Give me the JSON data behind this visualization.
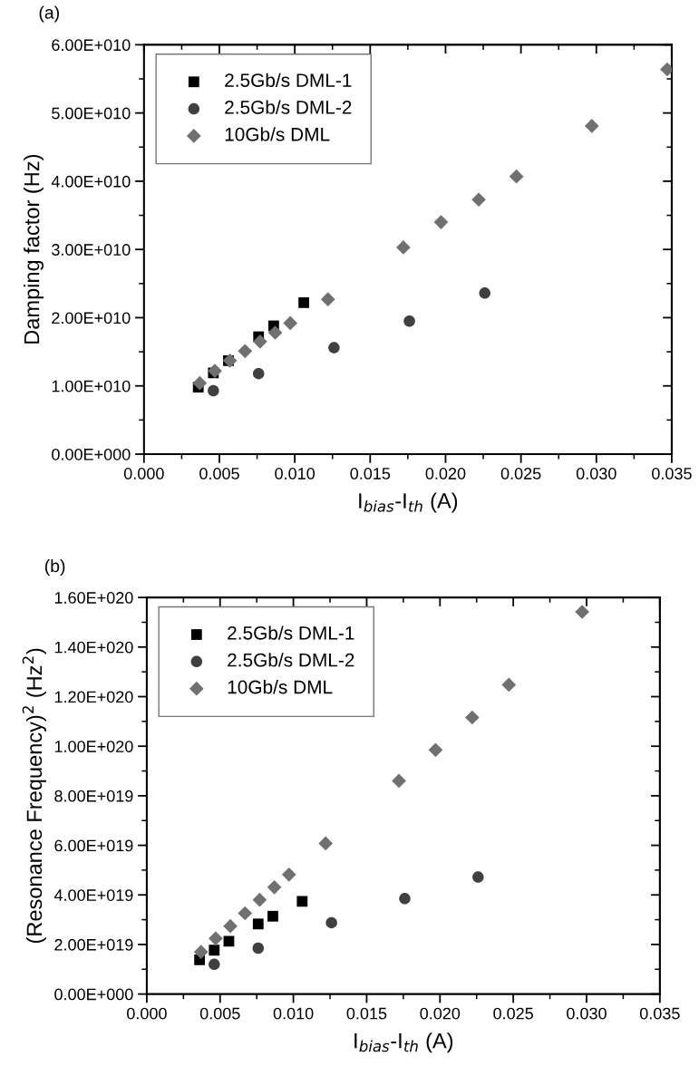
{
  "chart_data": [
    {
      "type": "scatter",
      "title": "(a)",
      "xlabel": "I$_{bias}$-I$_{th}$ (A)",
      "ylabel": "Damping factor (Hz)",
      "xlim": [
        0,
        0.035
      ],
      "xticks": [
        {
          "value": 0,
          "label": "0.000"
        },
        {
          "value": 0.005,
          "label": "0.005"
        },
        {
          "value": 0.01,
          "label": "0.010"
        },
        {
          "value": 0.015,
          "label": "0.015"
        },
        {
          "value": 0.02,
          "label": "0.020"
        },
        {
          "value": 0.025,
          "label": "0.025"
        },
        {
          "value": 0.03,
          "label": "0.030"
        },
        {
          "value": 0.035,
          "label": "0.035"
        }
      ],
      "ylim": [
        0,
        60000000000.0
      ],
      "yticks": [
        {
          "value": 0,
          "label": "0.00E+000"
        },
        {
          "value": 10000000000.0,
          "label": "1.00E+010"
        },
        {
          "value": 20000000000.0,
          "label": "2.00E+010"
        },
        {
          "value": 30000000000.0,
          "label": "3.00E+010"
        },
        {
          "value": 40000000000.0,
          "label": "4.00E+010"
        },
        {
          "value": 50000000000.0,
          "label": "5.00E+010"
        },
        {
          "value": 60000000000.0,
          "label": "6.00E+010"
        }
      ],
      "legend": "top left",
      "grid": false,
      "series": [
        {
          "name": "2.5Gb/s DML-1",
          "color": "#000000",
          "marker": "square",
          "x": [
            0.0036,
            0.0046,
            0.0056,
            0.0076,
            0.0086,
            0.0106
          ],
          "values": [
            9800000000.0,
            11900000000.0,
            13700000000.0,
            17200000000.0,
            18800000000.0,
            22200000000.0
          ]
        },
        {
          "name": "2.5Gb/s DML-2",
          "color": "#404040",
          "marker": "circle",
          "x": [
            0.0046,
            0.0076,
            0.0126,
            0.0176,
            0.0226
          ],
          "values": [
            9300000000.0,
            11800000000.0,
            15600000000.0,
            19500000000.0,
            23600000000.0
          ]
        },
        {
          "name": "10Gb/s DML",
          "color": "#707070",
          "marker": "diamond",
          "x": [
            0.0037,
            0.0047,
            0.0057,
            0.0067,
            0.0077,
            0.0087,
            0.0097,
            0.0122,
            0.0172,
            0.0197,
            0.0222,
            0.0247,
            0.0297,
            0.0347
          ],
          "values": [
            10400000000.0,
            12200000000.0,
            13700000000.0,
            15100000000.0,
            16500000000.0,
            17800000000.0,
            19200000000.0,
            22700000000.0,
            30300000000.0,
            34000000000.0,
            37300000000.0,
            40700000000.0,
            48100000000.0,
            56400000000.0
          ]
        }
      ]
    },
    {
      "type": "scatter",
      "title": "(b)",
      "xlabel": "I$_{bias}$-I$_{th}$ (A)",
      "ylabel": "(Resonance Frequency)$^{2}$ (Hz$^{2}$)",
      "xlim": [
        0,
        0.035
      ],
      "xticks": [
        {
          "value": 0,
          "label": "0.000"
        },
        {
          "value": 0.005,
          "label": "0.005"
        },
        {
          "value": 0.01,
          "label": "0.010"
        },
        {
          "value": 0.015,
          "label": "0.015"
        },
        {
          "value": 0.02,
          "label": "0.020"
        },
        {
          "value": 0.025,
          "label": "0.025"
        },
        {
          "value": 0.03,
          "label": "0.030"
        },
        {
          "value": 0.035,
          "label": "0.035"
        }
      ],
      "ylim": [
        0,
        1.6e+20
      ],
      "yticks": [
        {
          "value": 0,
          "label": "0.00E+000"
        },
        {
          "value": 2e+19,
          "label": "2.00E+019"
        },
        {
          "value": 4e+19,
          "label": "4.00E+019"
        },
        {
          "value": 6e+19,
          "label": "6.00E+019"
        },
        {
          "value": 8e+19,
          "label": "8.00E+019"
        },
        {
          "value": 1e+20,
          "label": "1.00E+020"
        },
        {
          "value": 1.2e+20,
          "label": "1.20E+020"
        },
        {
          "value": 1.4e+20,
          "label": "1.40E+020"
        },
        {
          "value": 1.6e+20,
          "label": "1.60E+020"
        }
      ],
      "legend": "top left",
      "grid": false,
      "series": [
        {
          "name": "2.5Gb/s DML-1",
          "color": "#000000",
          "marker": "square",
          "x": [
            0.0036,
            0.0046,
            0.0056,
            0.0076,
            0.0086,
            0.0106
          ],
          "values": [
            1.38e+19,
            1.77e+19,
            2.13e+19,
            2.83e+19,
            3.14e+19,
            3.74e+19
          ]
        },
        {
          "name": "2.5Gb/s DML-2",
          "color": "#404040",
          "marker": "circle",
          "x": [
            0.0046,
            0.0076,
            0.0126,
            0.0176,
            0.0226
          ],
          "values": [
            1.2e+19,
            1.85e+19,
            2.88e+19,
            3.85e+19,
            4.72e+19
          ]
        },
        {
          "name": "10Gb/s DML",
          "color": "#707070",
          "marker": "diamond",
          "x": [
            0.0037,
            0.0047,
            0.0057,
            0.0067,
            0.0077,
            0.0087,
            0.0097,
            0.0122,
            0.0172,
            0.0197,
            0.0222,
            0.0247,
            0.0297
          ],
          "values": [
            1.7e+19,
            2.24e+19,
            2.74e+19,
            3.26e+19,
            3.8e+19,
            4.31e+19,
            4.82e+19,
            6.08e+19,
            8.6e+19,
            9.85e+19,
            1.116e+20,
            1.248e+20,
            1.542e+20
          ]
        }
      ]
    }
  ]
}
